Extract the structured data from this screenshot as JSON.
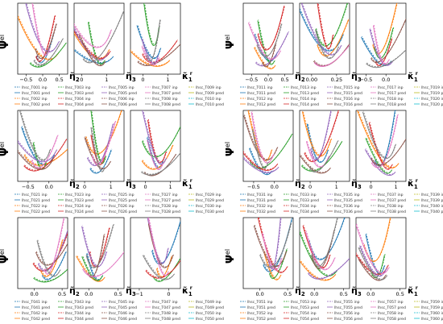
{
  "figure": {
    "colors": [
      "#1f77b4",
      "#ff7f0e",
      "#2ca02c",
      "#d62728",
      "#9467bd",
      "#8c564b",
      "#e377c2",
      "#7f7f7f",
      "#bcbd22",
      "#17becf"
    ],
    "ylabel_main": "Ψ",
    "ylabel_sup": "el",
    "xlabels": [
      {
        "main": "η̃",
        "sub": "2"
      },
      {
        "main": "η̃",
        "sub": "3"
      },
      {
        "main": "κ̃",
        "sub": "1",
        "sup": "r"
      }
    ]
  },
  "chart_data": [
    {
      "type": "line",
      "panel": "a",
      "panels": [
        {
          "ticks": [
            "−0.5",
            "0.0",
            "0.5"
          ],
          "xlim": [
            -0.75,
            0.75
          ]
        },
        {
          "ticks": [
            "0",
            "1"
          ],
          "xlim": [
            -0.3,
            1.7
          ]
        },
        {
          "ticks": [
            "0",
            "1"
          ],
          "xlim": [
            -0.5,
            1.5
          ]
        }
      ],
      "legend": [
        [
          "lhsc_T001 inp",
          "lhsc_T003 inp",
          "lhsc_T005 inp",
          "lhsc_T007 inp",
          "lhsc_T009 inp"
        ],
        [
          "lhsc_T001 pred",
          "lhsc_T003 pred",
          "lhsc_T005 pred",
          "lhsc_T007 pred",
          "lhsc_T009 pred"
        ],
        [
          "lhsc_T002 inp",
          "lhsc_T004 inp",
          "lhsc_T006 inp",
          "lhsc_T008 inp",
          "lhsc_T010 inp"
        ],
        [
          "lhsc_T002 pred",
          "lhsc_T004 pred",
          "lhsc_T006 pred",
          "lhsc_T008 pred",
          "lhsc_T010 pred"
        ]
      ]
    },
    {
      "type": "line",
      "panel": "b",
      "panels": [
        {
          "ticks": [
            "−0.5",
            "0.0",
            "0.5"
          ],
          "xlim": [
            -0.75,
            0.75
          ]
        },
        {
          "ticks": [
            "0.00",
            "0.25"
          ],
          "xlim": [
            -0.12,
            0.38
          ]
        },
        {
          "ticks": [
            "−0.5",
            "0.0"
          ],
          "xlim": [
            -0.75,
            0.5
          ]
        }
      ],
      "legend": [
        [
          "lhsc_T011 inp",
          "lhsc_T013 inp",
          "lhsc_T015 inp",
          "lhsc_T017 inp",
          "lhsc_T019 inp"
        ],
        [
          "lhsc_T011 pred",
          "lhsc_T013 pred",
          "lhsc_T015 pred",
          "lhsc_T017 pred",
          "lhsc_T019 pred"
        ],
        [
          "lhsc_T012 inp",
          "lhsc_T014 inp",
          "lhsc_T016 inp",
          "lhsc_T018 inp",
          "lhsc_T020 inp"
        ],
        [
          "lhsc_T012 pred",
          "lhsc_T014 pred",
          "lhsc_T016 pred",
          "lhsc_T018 pred",
          "lhsc_T020 pred"
        ]
      ]
    },
    {
      "type": "line",
      "panel": "c",
      "panels": [
        {
          "ticks": [
            "−0.5",
            "0.0"
          ],
          "xlim": [
            -0.75,
            0.45
          ]
        },
        {
          "ticks": [
            "0",
            "1"
          ],
          "xlim": [
            -0.4,
            1.5
          ]
        },
        {
          "ticks": [
            "0",
            "1"
          ],
          "xlim": [
            -0.6,
            1.4
          ]
        }
      ],
      "legend": [
        [
          "lhsc_T021 inp",
          "lhsc_T023 inp",
          "lhsc_T025 inp",
          "lhsc_T027 inp",
          "lhsc_T029 inp"
        ],
        [
          "lhsc_T021 pred",
          "lhsc_T023 pred",
          "lhsc_T025 pred",
          "lhsc_T027 pred",
          "lhsc_T029 pred"
        ],
        [
          "lhsc_T022 inp",
          "lhsc_T024 inp",
          "lhsc_T026 inp",
          "lhsc_T028 inp",
          "lhsc_T030 inp"
        ],
        [
          "lhsc_T022 pred",
          "lhsc_T024 pred",
          "lhsc_T026 pred",
          "lhsc_T028 pred",
          "lhsc_T030 pred"
        ]
      ]
    },
    {
      "type": "line",
      "panel": "d",
      "panels": [
        {
          "ticks": [
            "−0.5",
            "0.0"
          ],
          "xlim": [
            -0.75,
            0.45
          ]
        },
        {
          "ticks": [
            "0",
            "1"
          ],
          "xlim": [
            -0.4,
            1.5
          ]
        },
        {
          "ticks": [
            "0",
            "1"
          ],
          "xlim": [
            -0.6,
            1.4
          ]
        }
      ],
      "legend": [
        [
          "lhsc_T031 inp",
          "lhsc_T033 inp",
          "lhsc_T035 inp",
          "lhsc_T037 inp",
          "lhsc_T039 inp"
        ],
        [
          "lhsc_T031 pred",
          "lhsc_T033 pred",
          "lhsc_T035 pred",
          "lhsc_T037 pred",
          "lhsc_T039 pred"
        ],
        [
          "lhsc_T032 inp",
          "lhsc_T034 inp",
          "lhsc_T036 inp",
          "lhsc_T038 inp",
          "lhsc_T040 inp"
        ],
        [
          "lhsc_T032 pred",
          "lhsc_T034 pred",
          "lhsc_T036 pred",
          "lhsc_T038 pred",
          "lhsc_T040 pred"
        ]
      ]
    },
    {
      "type": "line",
      "panel": "e",
      "panels": [
        {
          "ticks": [
            "0.0",
            "0.5"
          ],
          "xlim": [
            -0.3,
            0.6
          ]
        },
        {
          "ticks": [
            "0.0",
            "0.5"
          ],
          "xlim": [
            -0.25,
            0.6
          ]
        },
        {
          "ticks": [
            "−1",
            "0"
          ],
          "xlim": [
            -1.3,
            0.4
          ]
        }
      ],
      "legend": [
        [
          "lhsc_T041 inp",
          "lhsc_T043 inp",
          "lhsc_T045 inp",
          "lhsc_T047 inp",
          "lhsc_T049 inp"
        ],
        [
          "lhsc_T041 pred",
          "lhsc_T043 pred",
          "lhsc_T045 pred",
          "lhsc_T047 pred",
          "lhsc_T049 pred"
        ],
        [
          "lhsc_T042 inp",
          "lhsc_T044 inp",
          "lhsc_T046 inp",
          "lhsc_T048 inp",
          "lhsc_T050 inp"
        ],
        [
          "lhsc_T042 pred",
          "lhsc_T044 pred",
          "lhsc_T046 pred",
          "lhsc_T048 pred",
          "lhsc_T050 pred"
        ]
      ]
    },
    {
      "type": "line",
      "panel": "f",
      "panels": [
        {
          "ticks": [
            "0.0",
            "0.5"
          ],
          "xlim": [
            -0.3,
            0.6
          ]
        },
        {
          "ticks": [
            "0.0",
            "0.5"
          ],
          "xlim": [
            -0.25,
            0.6
          ]
        },
        {
          "ticks": [
            "0.0",
            "0.5"
          ],
          "xlim": [
            -0.25,
            0.6
          ]
        }
      ],
      "legend": [
        [
          "lhsc_T051 inp",
          "lhsc_T053 inp",
          "lhsc_T055 inp",
          "lhsc_T057 inp",
          "lhsc_T059 inp"
        ],
        [
          "lhsc_T051 pred",
          "lhsc_T053 pred",
          "lhsc_T055 pred",
          "lhsc_T057 pred",
          "lhsc_T059 pred"
        ],
        [
          "lhsc_T052 inp",
          "lhsc_T054 inp",
          "lhsc_T056 inp",
          "lhsc_T058 inp",
          "lhsc_T060 inp"
        ],
        [
          "lhsc_T052 pred",
          "lhsc_T054 pred",
          "lhsc_T056 pred",
          "lhsc_T058 pred",
          "lhsc_T060 pred"
        ]
      ]
    }
  ]
}
